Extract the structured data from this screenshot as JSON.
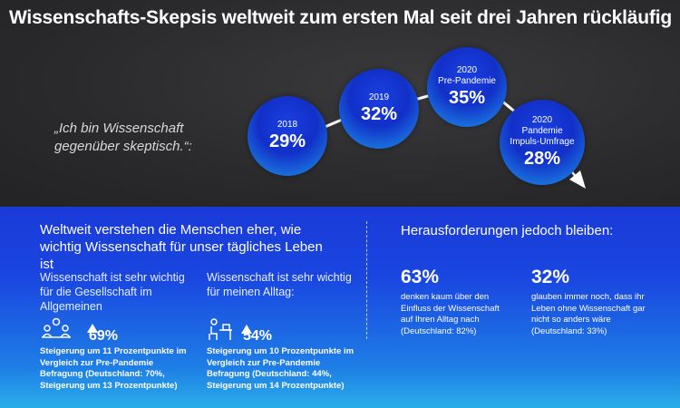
{
  "title": "Wissenschafts-Skepsis weltweit zum ersten Mal seit drei Jahren rückläufig",
  "quote": "„Ich bin Wissenschaft gegenüber skeptisch.“:",
  "bubbles": [
    {
      "year": "2018",
      "value": "29%"
    },
    {
      "year": "2019",
      "value": "32%"
    },
    {
      "year": "2020 Pre-Pandemie",
      "year_line1": "2020",
      "year_line2": "Pre-Pandemie",
      "value": "35%"
    },
    {
      "year": "2020 Pandemie Impuls-Umfrage",
      "year_line1": "2020",
      "year_line2": "Pandemie",
      "year_line3": "Impuls-Umfrage",
      "value": "28%"
    }
  ],
  "left": {
    "heading": "Weltweit verstehen die Menschen eher, wie wichtig Wissenschaft für unser tägliches Leben ist",
    "col1": {
      "sub": "Wissenschaft ist sehr wichtig für die Gesellschaft im Allgemeinen",
      "icon": "people-meeting-icon",
      "pct": "69%",
      "note": "Steigerung um 11 Prozentpunkte im Vergleich zur Pre-Pandemie Befragung (Deutschland: 70%, Steigerung um 13 Prozentpunkte)"
    },
    "col2": {
      "sub": "Wissenschaft ist sehr wichtig für meinen Alltag:",
      "icon": "person-at-desk-icon",
      "pct": "54%",
      "note": "Steigerung um 10 Prozentpunkte im Vergleich zur Pre-Pandemie Befragung (Deutschland: 44%, Steigerung um 14 Prozentpunkte)"
    }
  },
  "right": {
    "heading": "Herausforderungen jedoch bleiben:",
    "stat1": {
      "pct": "63%",
      "note": "denken kaum über den Einfluss der Wissenschaft auf Ihren Alltag nach (Deutschland: 82%)"
    },
    "stat2": {
      "pct": "32%",
      "note": "glauben immer noch, dass ihr Leben ohne Wissenschaft gar nicht so anders wäre (Deutschland: 33%)"
    }
  },
  "colors": {
    "accent": "#1a3ad8",
    "background": "#2a2a2c",
    "arrow": "#ffffff"
  }
}
